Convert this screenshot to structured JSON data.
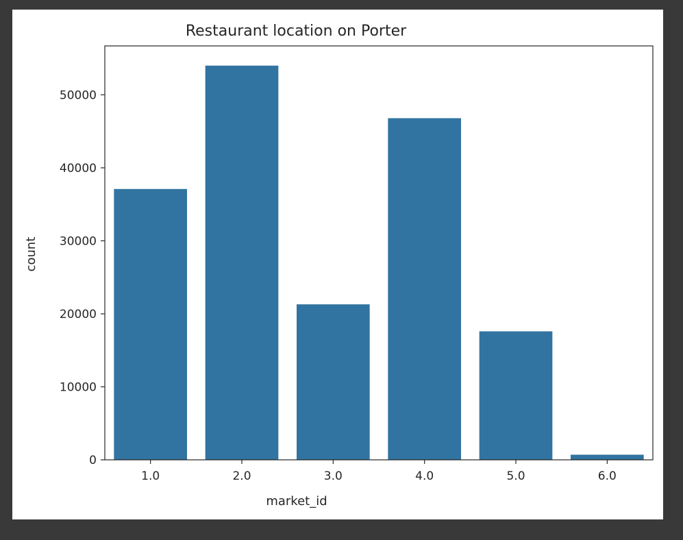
{
  "colors": {
    "window_background": "#393939",
    "figure_background": "#ffffff",
    "bar": "#3274a1",
    "axis": "#262626"
  },
  "chart_data": {
    "type": "bar",
    "title": "Restaurant location on Porter",
    "xlabel": "market_id",
    "ylabel": "count",
    "categories": [
      "1.0",
      "2.0",
      "3.0",
      "4.0",
      "5.0",
      "6.0"
    ],
    "values": [
      37100,
      54000,
      21300,
      46800,
      17600,
      700
    ],
    "ylim": [
      0,
      56700
    ],
    "yticks": [
      0,
      10000,
      20000,
      30000,
      40000,
      50000
    ],
    "grid": false,
    "legend": "none"
  }
}
